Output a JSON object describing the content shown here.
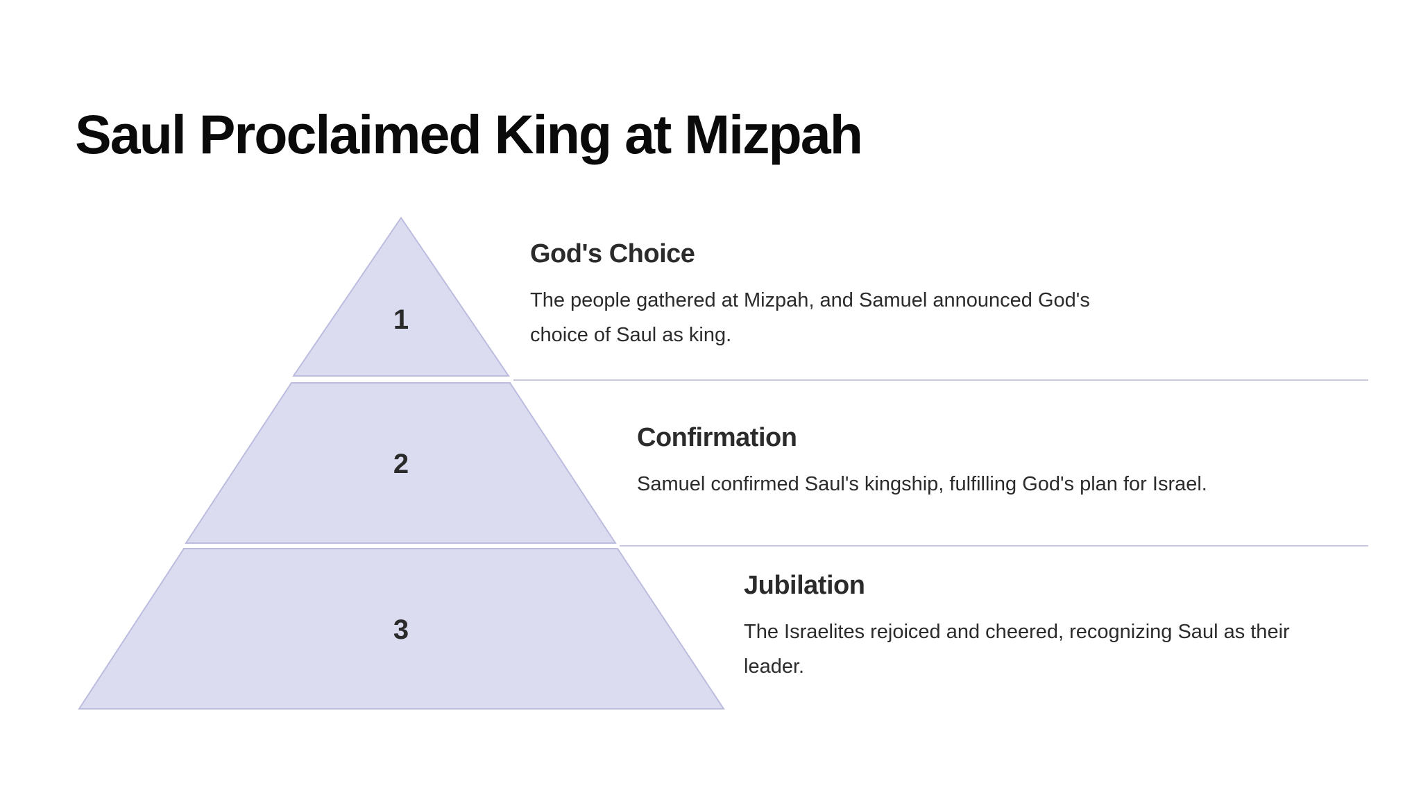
{
  "title": "Saul Proclaimed King at Mizpah",
  "tiers": [
    {
      "number": "1",
      "heading": "God's Choice",
      "description": "The people gathered at Mizpah, and Samuel announced God's choice of Saul as king."
    },
    {
      "number": "2",
      "heading": "Confirmation",
      "description": "Samuel confirmed Saul's kingship, fulfilling God's plan for Israel."
    },
    {
      "number": "3",
      "heading": "Jubilation",
      "description": "The Israelites rejoiced and cheered, recognizing Saul as their leader."
    }
  ],
  "colors": {
    "tier_fill": "#dcdcf0",
    "tier_stroke": "#bcbcdf",
    "text": "#2b2b2b",
    "title": "#0a0a0a"
  }
}
